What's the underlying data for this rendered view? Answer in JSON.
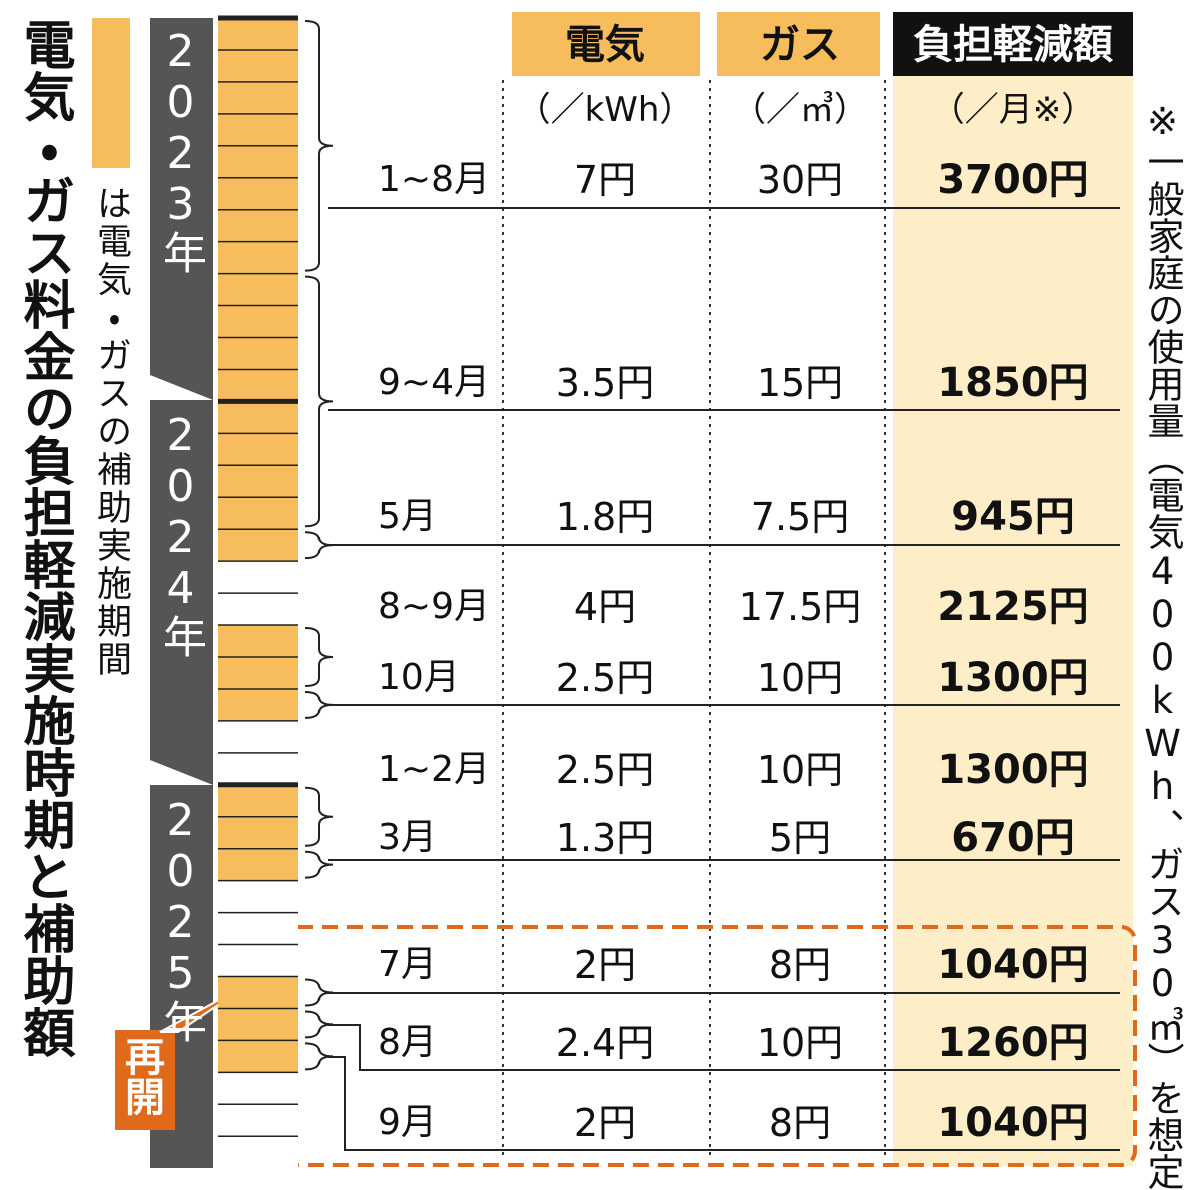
{
  "title": "電気・ガス料金の負担軽減実施時期と補助額",
  "legend": "は電気・ガスの補助実施期間",
  "years": [
    "2023年",
    "2024年",
    "2025年"
  ],
  "table": {
    "headers": [
      "電気",
      "ガス",
      "負担軽減額"
    ],
    "units": [
      "（／kWh）",
      "（／㎥）",
      "（／月※）"
    ],
    "rows": [
      [
        "1~8月",
        "7円",
        "30円",
        "3700円"
      ],
      [
        "9~4月",
        "3.5円",
        "15円",
        "1850円"
      ],
      [
        "5月",
        "1.8円",
        "7.5円",
        "945円"
      ],
      [
        "8~9月",
        "4円",
        "17.5円",
        "2125円"
      ],
      [
        "10月",
        "2.5円",
        "10円",
        "1300円"
      ],
      [
        "1~2月",
        "2.5円",
        "10円",
        "1300円"
      ],
      [
        "3月",
        "1.3円",
        "5円",
        "670円"
      ],
      [
        "7月",
        "2円",
        "8円",
        "1040円"
      ],
      [
        "8月",
        "2.4円",
        "10円",
        "1260円"
      ],
      [
        "9月",
        "2円",
        "8円",
        "1040円"
      ]
    ]
  },
  "restart": "再開",
  "note": "※一般家庭の使用量（電気400kWh、ガス30㎥）を想定"
}
